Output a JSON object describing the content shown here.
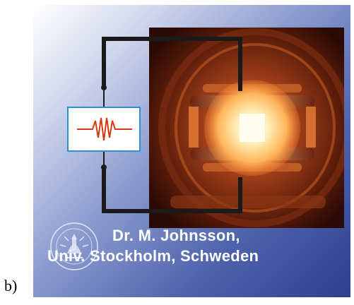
{
  "panel_label": "b)",
  "credit": {
    "line1": "Dr. M. Johnsson,",
    "line2": "Univ. Stockholm, Schweden"
  },
  "seal": {
    "icon": "university-seal-icon",
    "text": "UNIVERSITET STOCKHOLMS"
  },
  "heater": {
    "icon": "heating-pulse-icon"
  },
  "colors": {
    "background_light": "#ffffff",
    "background_dark": "#2d3f8f",
    "wire": "#1a1a1a",
    "box_border": "#2e8fd6",
    "pulse": "#d63a12",
    "glow": "#fff3c8"
  }
}
